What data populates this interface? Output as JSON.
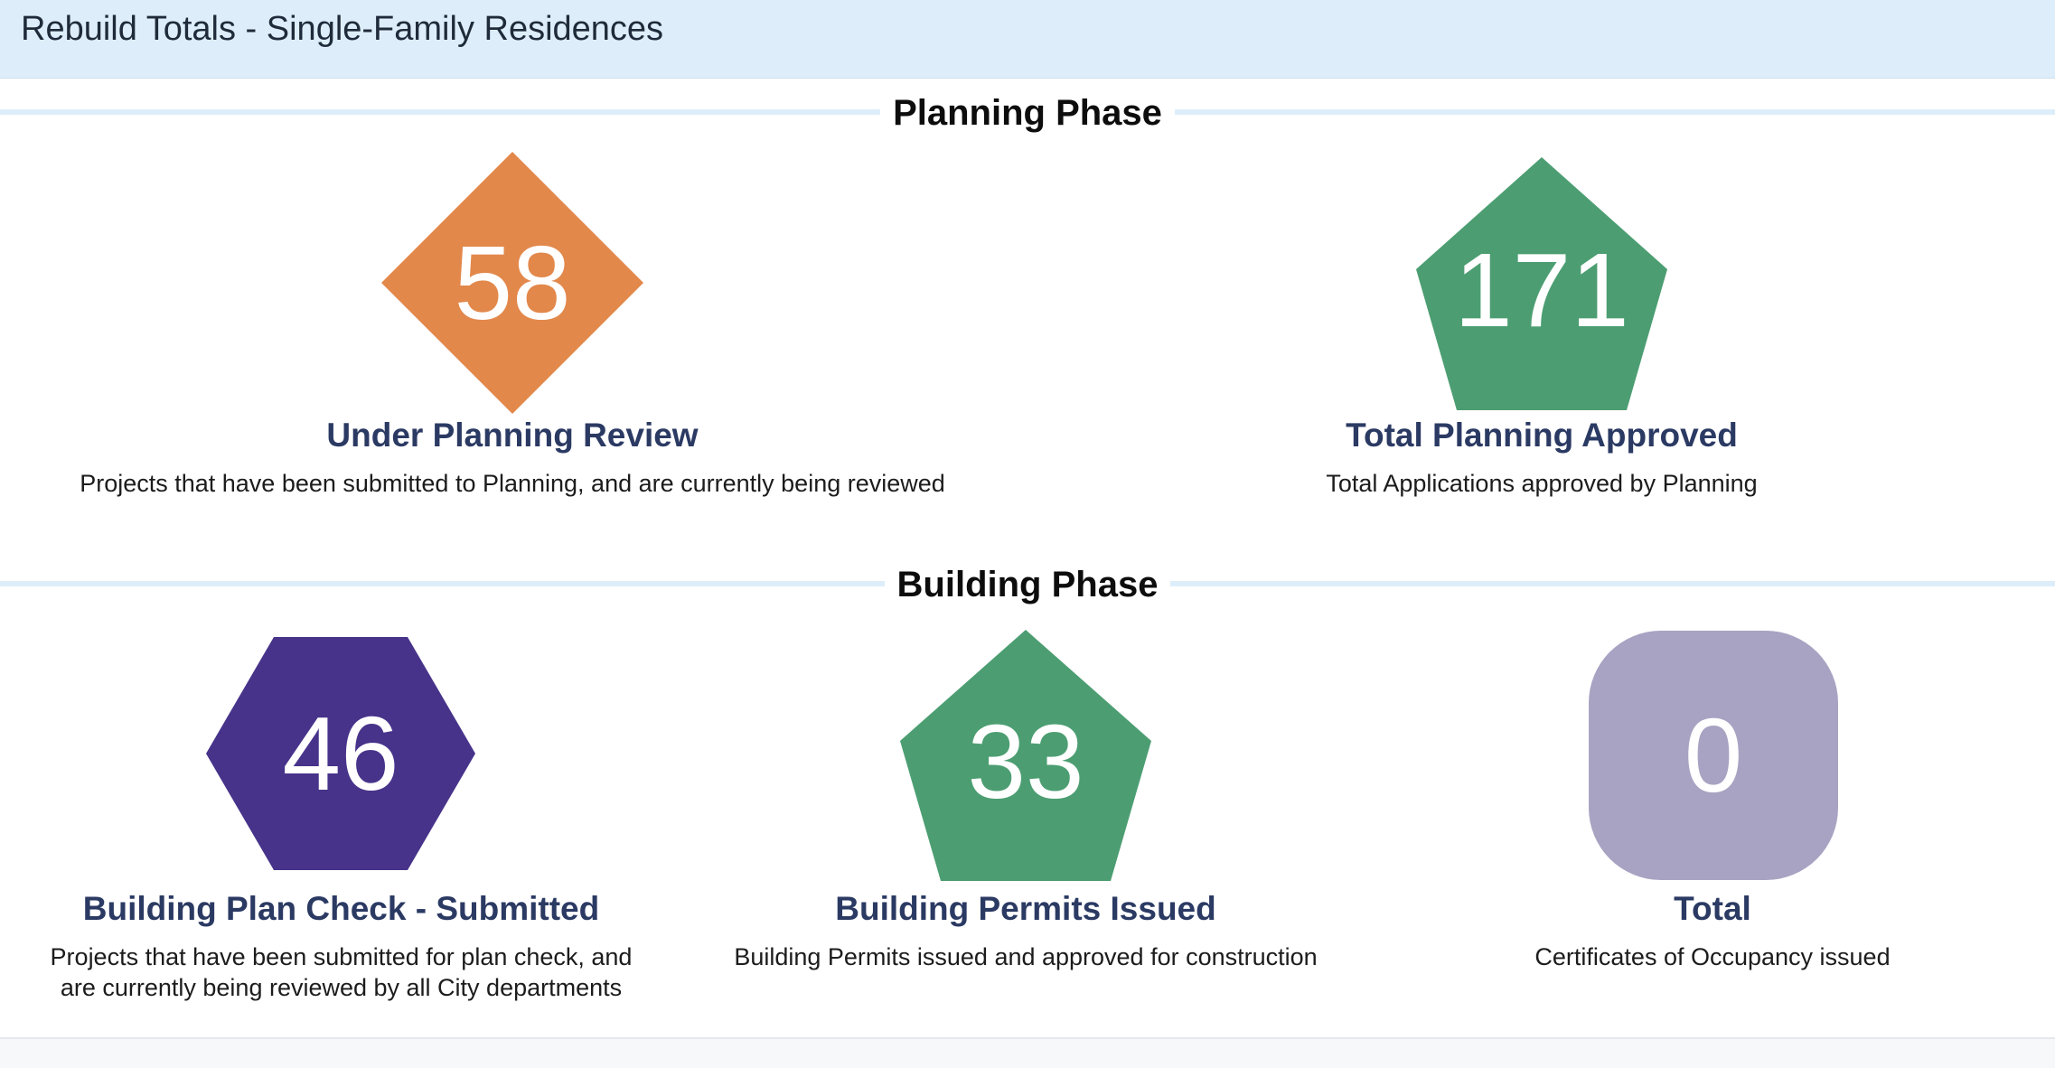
{
  "header": {
    "title": "Rebuild Totals - Single-Family Residences"
  },
  "sections": {
    "planning": {
      "title": "Planning Phase",
      "cards": {
        "under_review": {
          "value": "58",
          "title": "Under Planning Review",
          "description": "Projects that have been submitted to Planning, and are currently being reviewed",
          "shape": "diamond",
          "color": "#e2884b"
        },
        "approved": {
          "value": "171",
          "title": "Total Planning Approved",
          "description": "Total Applications approved by Planning",
          "shape": "pentagon",
          "color": "#4c9e72"
        }
      }
    },
    "building": {
      "title": "Building Phase",
      "cards": {
        "plan_check": {
          "value": "46",
          "title": "Building Plan Check - Submitted",
          "description_line1": "Projects that have been submitted for plan check, and",
          "description_line2": "are currently being reviewed by all City departments",
          "shape": "hexagon",
          "color": "#47338a"
        },
        "permits": {
          "value": "33",
          "title": "Building Permits Issued",
          "description": "Building Permits issued and approved for construction",
          "shape": "pentagon",
          "color": "#4c9e72"
        },
        "occupancy": {
          "value": "0",
          "title": "Total",
          "description": "Certificates of Occupancy issued",
          "shape": "rounded-square",
          "color": "#a8a3c2"
        }
      }
    }
  }
}
